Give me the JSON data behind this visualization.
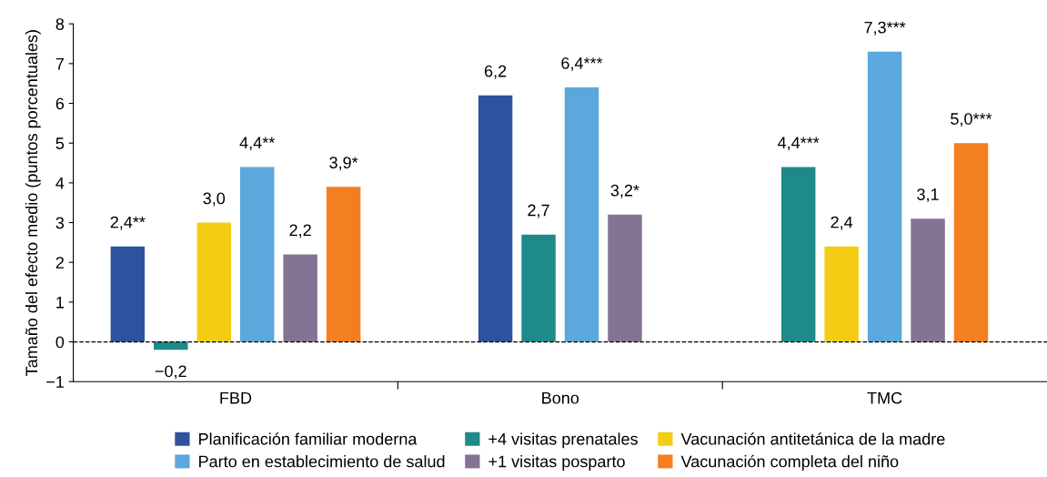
{
  "chart_data": {
    "type": "bar",
    "ylabel": "Tamaño del efecto medio (puntos porcentuales)",
    "categories": [
      "FBD",
      "Bono",
      "TMC"
    ],
    "series": [
      {
        "name": "Planificación familiar moderna",
        "color": "#2e539e",
        "values": [
          2.4,
          6.2,
          null
        ],
        "value_labels": [
          "2,4**",
          "6,2",
          null
        ]
      },
      {
        "name": "+4 visitas prenatales",
        "color": "#1e8a8a",
        "values": [
          -0.2,
          2.7,
          4.4
        ],
        "value_labels": [
          "−0,2",
          "2,7",
          "4,4***"
        ]
      },
      {
        "name": "Vacunación antitetánica de la madre",
        "color": "#f2cd13",
        "values": [
          3.0,
          null,
          2.4
        ],
        "value_labels": [
          "3,0",
          null,
          "2,4"
        ]
      },
      {
        "name": "Parto en establecimiento de salud",
        "color": "#5ba8dc",
        "values": [
          4.4,
          6.4,
          7.3
        ],
        "value_labels": [
          "4,4**",
          "6,4***",
          "7,3***"
        ]
      },
      {
        "name": "+1 visitas posparto",
        "color": "#857394",
        "values": [
          2.2,
          3.2,
          3.1
        ],
        "value_labels": [
          "2,2",
          "3,2*",
          "3,1"
        ]
      },
      {
        "name": "Vacunación completa del niño",
        "color": "#f47f20",
        "values": [
          3.9,
          null,
          5.0
        ],
        "value_labels": [
          "3,9*",
          null,
          "5,0***"
        ]
      }
    ],
    "ylim": [
      -1,
      8
    ],
    "yticks": [
      -1,
      0,
      1,
      2,
      3,
      4,
      5,
      6,
      7,
      8
    ],
    "ref_lines": [
      {
        "axis": "y",
        "value": 0,
        "color": "#000000",
        "line_style": "dashed"
      }
    ],
    "grid": false,
    "legend": "bottom"
  }
}
